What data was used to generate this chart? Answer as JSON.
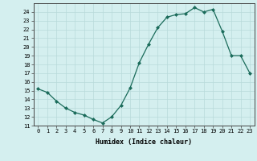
{
  "x": [
    0,
    1,
    2,
    3,
    4,
    5,
    6,
    7,
    8,
    9,
    10,
    11,
    12,
    13,
    14,
    15,
    16,
    17,
    18,
    19,
    20,
    21,
    22,
    23
  ],
  "y": [
    15.2,
    14.8,
    13.8,
    13.0,
    12.5,
    12.2,
    11.7,
    11.3,
    12.0,
    13.3,
    15.3,
    18.2,
    20.3,
    22.2,
    23.4,
    23.7,
    23.8,
    24.5,
    24.0,
    24.3,
    21.8,
    19.0,
    19.0,
    17.0
  ],
  "xlabel": "Humidex (Indice chaleur)",
  "ylim": [
    11,
    25
  ],
  "xlim": [
    -0.5,
    23.5
  ],
  "yticks": [
    11,
    12,
    13,
    14,
    15,
    16,
    17,
    18,
    19,
    20,
    21,
    22,
    23,
    24
  ],
  "xticks": [
    0,
    1,
    2,
    3,
    4,
    5,
    6,
    7,
    8,
    9,
    10,
    11,
    12,
    13,
    14,
    15,
    16,
    17,
    18,
    19,
    20,
    21,
    22,
    23
  ],
  "line_color": "#1a6b5a",
  "marker_color": "#1a6b5a",
  "bg_color": "#d4efef",
  "grid_color": "#b8dada",
  "xlabel_fontsize": 6.0,
  "tick_fontsize": 5.0
}
